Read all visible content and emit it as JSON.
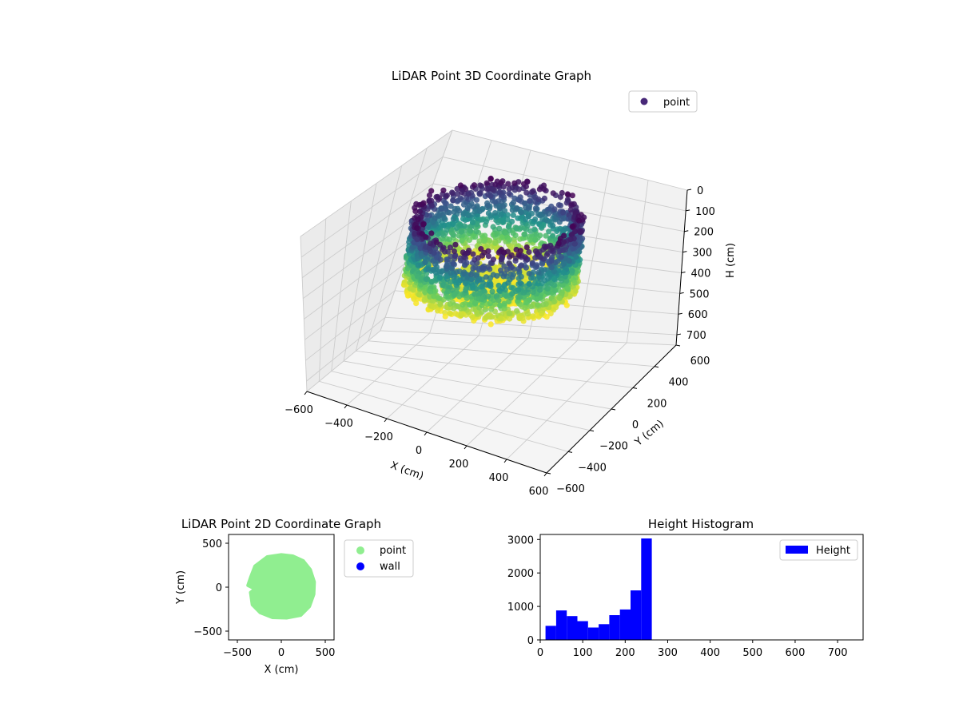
{
  "colors": {
    "point_3d": "#482878",
    "point_2d": "#90ee90",
    "wall": "#0000ff",
    "hist": "#0000ff",
    "pane": "#f2f2f2",
    "grid": "#cccccc",
    "viridis": [
      "#440154",
      "#3b528b",
      "#21918c",
      "#5ec962",
      "#fde725"
    ]
  },
  "chart_data": [
    {
      "type": "scatter",
      "title": "LiDAR Point 3D Coordinate Graph",
      "xlabel": "X (cm)",
      "ylabel": "Y (cm)",
      "zlabel": "H (cm)",
      "xlim": [
        -600,
        600
      ],
      "ylim": [
        -600,
        600
      ],
      "zlim": [
        0,
        750
      ],
      "z_inverted": true,
      "xticks": [
        "−600",
        "−400",
        "−200",
        "0",
        "200",
        "400",
        "600"
      ],
      "yticks": [
        "−600",
        "−400",
        "−200",
        "0",
        "200",
        "400",
        "600"
      ],
      "zticks": [
        "0",
        "100",
        "200",
        "300",
        "400",
        "500",
        "600",
        "700"
      ],
      "legend": [
        "point"
      ],
      "legend_position": "upper right",
      "grid": true,
      "colormap": "viridis",
      "series": [
        {
          "name": "point",
          "shape": "ring around center",
          "radius": [
            230,
            370
          ],
          "height": [
            0,
            325
          ],
          "inner_floor_height": 290
        }
      ]
    },
    {
      "type": "scatter",
      "title": "LiDAR Point 2D Coordinate Graph",
      "xlabel": "X (cm)",
      "ylabel": "Y (cm)",
      "xlim": [
        -600,
        600
      ],
      "ylim": [
        -600,
        600
      ],
      "xticks": [
        "−500",
        "0",
        "500"
      ],
      "yticks": [
        "−500",
        "0",
        "500"
      ],
      "legend": [
        "point",
        "wall"
      ],
      "legend_position": "outside upper right",
      "series": [
        {
          "name": "point",
          "outline": [
            [
              0,
              370
            ],
            [
              130,
              355
            ],
            [
              250,
              300
            ],
            [
              330,
              200
            ],
            [
              375,
              60
            ],
            [
              370,
              -80
            ],
            [
              320,
              -220
            ],
            [
              220,
              -320
            ],
            [
              60,
              -350
            ],
            [
              -100,
              -345
            ],
            [
              -240,
              -290
            ],
            [
              -330,
              -200
            ],
            [
              -350,
              -60
            ],
            [
              -300,
              -20
            ],
            [
              -380,
              20
            ],
            [
              -350,
              110
            ],
            [
              -300,
              240
            ],
            [
              -160,
              345
            ]
          ]
        },
        {
          "name": "wall",
          "points": []
        }
      ]
    },
    {
      "type": "bar",
      "title": "Height Histogram",
      "xlabel": "",
      "ylabel": "",
      "xlim": [
        0,
        760
      ],
      "ylim": [
        0,
        3150
      ],
      "xticks": [
        "0",
        "100",
        "200",
        "300",
        "400",
        "500",
        "600",
        "700"
      ],
      "yticks": [
        "0",
        "1000",
        "2000",
        "3000"
      ],
      "legend": [
        "Height"
      ],
      "legend_position": "upper right",
      "bin_edges": [
        12.5,
        37.5,
        62.5,
        87.5,
        112.5,
        137.5,
        162.5,
        187.5,
        212.5,
        237.5,
        262.5,
        287.5,
        312.5,
        337.5
      ],
      "values": [
        420,
        880,
        710,
        560,
        370,
        470,
        740,
        910,
        1480,
        3030,
        0,
        0,
        0
      ]
    }
  ]
}
